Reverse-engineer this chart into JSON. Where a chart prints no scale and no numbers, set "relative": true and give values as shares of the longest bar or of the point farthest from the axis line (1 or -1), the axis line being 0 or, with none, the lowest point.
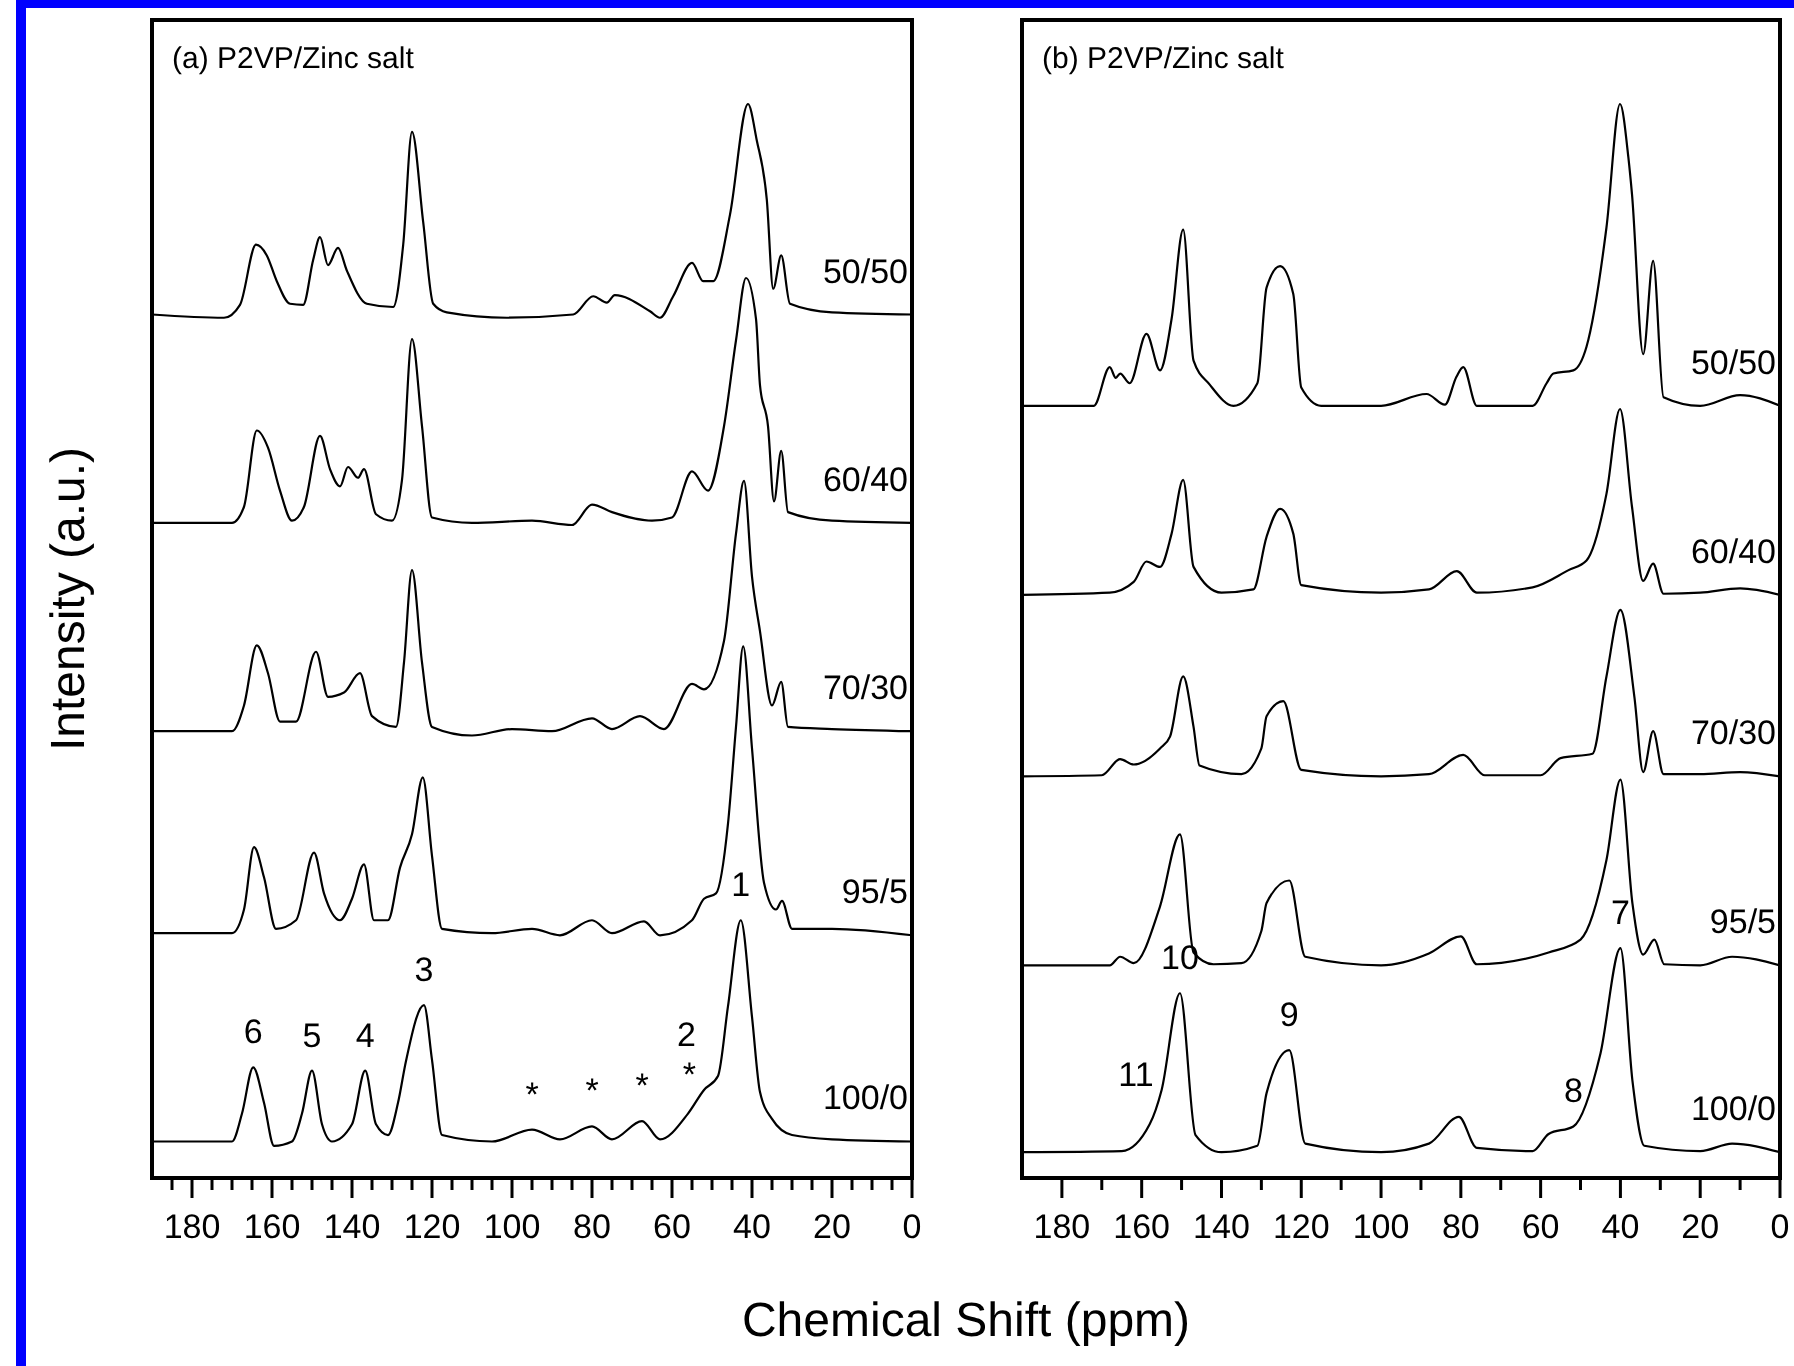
{
  "chart_data": [
    {
      "type": "line",
      "title": "(a) P2VP/Zinc salt",
      "xlabel": "Chemical Shift (ppm)",
      "ylabel": "Intensity (a.u.)",
      "relative": true,
      "xlim": [
        190,
        0
      ],
      "xticks": [
        {
          "value": 185,
          "label": null
        },
        180,
        {
          "value": 175,
          "label": null
        },
        {
          "value": 170,
          "label": null
        },
        {
          "value": 165,
          "label": null
        },
        160,
        {
          "value": 155,
          "label": null
        },
        {
          "value": 150,
          "label": null
        },
        {
          "value": 145,
          "label": null
        },
        140,
        {
          "value": 135,
          "label": null
        },
        {
          "value": 130,
          "label": null
        },
        {
          "value": 125,
          "label": null
        },
        120,
        {
          "value": 115,
          "label": null
        },
        {
          "value": 110,
          "label": null
        },
        {
          "value": 105,
          "label": null
        },
        100,
        {
          "value": 95,
          "label": null
        },
        {
          "value": 90,
          "label": null
        },
        {
          "value": 85,
          "label": null
        },
        80,
        {
          "value": 75,
          "label": null
        },
        {
          "value": 70,
          "label": null
        },
        {
          "value": 65,
          "label": null
        },
        60,
        {
          "value": 55,
          "label": null
        },
        {
          "value": 50,
          "label": null
        },
        {
          "value": 45,
          "label": null
        },
        40,
        {
          "value": 35,
          "label": null
        },
        {
          "value": 30,
          "label": null
        },
        {
          "value": 25,
          "label": null
        },
        20,
        {
          "value": 15,
          "label": null
        },
        {
          "value": 10,
          "label": null
        },
        {
          "value": 5,
          "label": null
        },
        0
      ],
      "series": [
        {
          "name": "50/50",
          "color": "#000000",
          "x": [
            190,
            172,
            168,
            164,
            161.3,
            158.8,
            155.5,
            152.2,
            149.7,
            148,
            146,
            143.5,
            141.3,
            136.3,
            129.7,
            127.2,
            125,
            122.2,
            119.7,
            116.3,
            101.3,
            84.7,
            79.7,
            76.3,
            74.3,
            65.5,
            63,
            59.7,
            55,
            52.2,
            49.7,
            45.5,
            41,
            38.8,
            36.3,
            34.7,
            32.7,
            30.5,
            20,
            0
          ],
          "values": [
            0.804,
            0.801,
            0.813,
            0.869,
            0.859,
            0.835,
            0.814,
            0.813,
            0.855,
            0.876,
            0.85,
            0.866,
            0.845,
            0.814,
            0.811,
            0.869,
            0.974,
            0.89,
            0.814,
            0.806,
            0.801,
            0.804,
            0.821,
            0.815,
            0.822,
            0.807,
            0.801,
            0.821,
            0.852,
            0.835,
            0.835,
            0.897,
            1.0,
            0.966,
            0.911,
            0.828,
            0.859,
            0.814,
            0.806,
            0.804
          ]
        },
        {
          "name": "60/40",
          "color": "#000000",
          "x": [
            190,
            170,
            167,
            163.8,
            161,
            158,
            155,
            152,
            148,
            145.5,
            143,
            141,
            138.5,
            137,
            134,
            130,
            127.5,
            125,
            122.5,
            120,
            110,
            95,
            85,
            80,
            75,
            65,
            60,
            55,
            51,
            47,
            44,
            41.5,
            39,
            38,
            36,
            34.5,
            32.7,
            31,
            20,
            0
          ],
          "values": [
            0.61,
            0.61,
            0.625,
            0.696,
            0.68,
            0.64,
            0.612,
            0.625,
            0.691,
            0.66,
            0.644,
            0.662,
            0.652,
            0.66,
            0.618,
            0.612,
            0.65,
            0.781,
            0.7,
            0.615,
            0.61,
            0.612,
            0.608,
            0.627,
            0.62,
            0.612,
            0.615,
            0.658,
            0.64,
            0.7,
            0.78,
            0.838,
            0.8,
            0.738,
            0.7,
            0.63,
            0.677,
            0.62,
            0.612,
            0.61
          ]
        },
        {
          "name": "70/30",
          "color": "#000000",
          "x": [
            190,
            170,
            167,
            163.8,
            161,
            158,
            154,
            149,
            146,
            142,
            138,
            135,
            129,
            127,
            125,
            122.5,
            120,
            110,
            100,
            90,
            80,
            75,
            68,
            62,
            55,
            52,
            47,
            44,
            42,
            40,
            38,
            35,
            32.7,
            31,
            20,
            0
          ],
          "values": [
            0.416,
            0.416,
            0.44,
            0.496,
            0.47,
            0.425,
            0.425,
            0.49,
            0.448,
            0.452,
            0.47,
            0.43,
            0.42,
            0.48,
            0.566,
            0.48,
            0.42,
            0.412,
            0.418,
            0.416,
            0.428,
            0.418,
            0.43,
            0.418,
            0.46,
            0.455,
            0.5,
            0.6,
            0.649,
            0.56,
            0.509,
            0.44,
            0.462,
            0.42,
            0.418,
            0.416
          ]
        },
        {
          "name": "95/5",
          "color": "#000000",
          "x": [
            190,
            170,
            167,
            164.5,
            162,
            159,
            154,
            149.5,
            147,
            143,
            140,
            137,
            134.5,
            131,
            128,
            125,
            122.3,
            120,
            117.5,
            105,
            95,
            88,
            80,
            75,
            67,
            63,
            55,
            52,
            49,
            46,
            44,
            42.2,
            40,
            37,
            34,
            32.5,
            30,
            20,
            0
          ],
          "values": [
            0.228,
            0.228,
            0.25,
            0.308,
            0.28,
            0.232,
            0.24,
            0.303,
            0.265,
            0.24,
            0.26,
            0.292,
            0.24,
            0.24,
            0.289,
            0.32,
            0.373,
            0.3,
            0.232,
            0.228,
            0.232,
            0.226,
            0.24,
            0.228,
            0.239,
            0.226,
            0.24,
            0.26,
            0.265,
            0.33,
            0.42,
            0.495,
            0.4,
            0.275,
            0.25,
            0.258,
            0.232,
            0.232,
            0.226
          ]
        },
        {
          "name": "100/0",
          "color": "#000000",
          "x": [
            190,
            170,
            167.5,
            164.7,
            162,
            159.5,
            155,
            152.5,
            150,
            147.5,
            145,
            140,
            136.7,
            134,
            131,
            128.5,
            126.5,
            122,
            120,
            117.5,
            105,
            95,
            88,
            80,
            75,
            67.5,
            63,
            56,
            52,
            48.5,
            46,
            42.8,
            40,
            38,
            35,
            30,
            20,
            0
          ],
          "values": [
            0.034,
            0.034,
            0.06,
            0.103,
            0.07,
            0.03,
            0.034,
            0.06,
            0.1,
            0.05,
            0.034,
            0.05,
            0.1,
            0.05,
            0.04,
            0.07,
            0.109,
            0.161,
            0.11,
            0.04,
            0.034,
            0.045,
            0.036,
            0.048,
            0.036,
            0.053,
            0.036,
            0.06,
            0.082,
            0.095,
            0.16,
            0.24,
            0.15,
            0.08,
            0.055,
            0.04,
            0.036,
            0.034
          ]
        }
      ],
      "annotations": [
        {
          "text": "6",
          "x": 164.7,
          "y": 0.103
        },
        {
          "text": "5",
          "x": 150,
          "y": 0.1
        },
        {
          "text": "4",
          "x": 136.7,
          "y": 0.1
        },
        {
          "text": "3",
          "x": 122,
          "y": 0.161
        },
        {
          "text": "*",
          "x": 52,
          "y": 0.082
        },
        {
          "text": "2",
          "x": 52,
          "y": 0.082
        },
        {
          "text": "1",
          "x": 42.8,
          "y": 0.24
        },
        {
          "text": "*",
          "x": 95,
          "y": 0.045
        },
        {
          "text": "*",
          "x": 80,
          "y": 0.048
        },
        {
          "text": "*",
          "x": 67.5,
          "y": 0.053
        }
      ]
    },
    {
      "type": "line",
      "title": "(b) P2VP/Zinc salt",
      "relative": true,
      "xlim": [
        190,
        0
      ],
      "xticks": [
        180,
        {
          "value": 170,
          "label": null
        },
        160,
        {
          "value": 150,
          "label": null
        },
        140,
        {
          "value": 130,
          "label": null
        },
        120,
        {
          "value": 110,
          "label": null
        },
        100,
        {
          "value": 90,
          "label": null
        },
        80,
        {
          "value": 70,
          "label": null
        },
        60,
        {
          "value": 50,
          "label": null
        },
        40,
        {
          "value": 30,
          "label": null
        },
        20,
        {
          "value": 10,
          "label": null
        },
        0
      ],
      "series": [
        {
          "name": "50/50",
          "color": "#000000",
          "x": [
            190,
            172,
            168,
            166.5,
            165.4,
            163,
            158.8,
            155.4,
            152.5,
            149.6,
            147,
            143,
            137,
            131,
            128.7,
            125.3,
            122,
            120,
            115,
            100,
            88.6,
            84,
            81.1,
            79.4,
            76,
            62,
            58.5,
            56.8,
            51.8,
            48.5,
            43.5,
            40.1,
            38,
            37.1,
            34.3,
            31.8,
            29.2,
            20,
            10,
            0
          ],
          "values": [
            0.719,
            0.719,
            0.755,
            0.745,
            0.749,
            0.74,
            0.786,
            0.752,
            0.8,
            0.883,
            0.761,
            0.739,
            0.719,
            0.74,
            0.829,
            0.849,
            0.823,
            0.736,
            0.719,
            0.719,
            0.73,
            0.72,
            0.746,
            0.755,
            0.719,
            0.719,
            0.74,
            0.749,
            0.752,
            0.774,
            0.885,
            1.0,
            0.95,
            0.916,
            0.767,
            0.854,
            0.727,
            0.719,
            0.729,
            0.719
          ]
        },
        {
          "name": "60/40",
          "color": "#000000",
          "x": [
            190,
            168,
            162,
            158.8,
            155.4,
            152.5,
            149.6,
            147,
            140,
            132,
            128.7,
            125.3,
            122,
            120,
            100,
            88,
            81,
            76,
            62,
            53,
            48.5,
            43.5,
            40.1,
            37.1,
            34.3,
            31.8,
            29.2,
            20,
            10,
            0
          ],
          "values": [
            0.543,
            0.545,
            0.555,
            0.574,
            0.569,
            0.6,
            0.65,
            0.569,
            0.545,
            0.548,
            0.597,
            0.623,
            0.6,
            0.552,
            0.545,
            0.548,
            0.565,
            0.545,
            0.55,
            0.566,
            0.575,
            0.637,
            0.716,
            0.625,
            0.556,
            0.572,
            0.544,
            0.545,
            0.549,
            0.543
          ]
        },
        {
          "name": "70/30",
          "color": "#000000",
          "x": [
            190,
            170,
            165.4,
            162,
            155.4,
            152.9,
            149.6,
            147,
            145.5,
            135,
            130,
            128.7,
            124.5,
            120,
            100,
            88,
            79.4,
            74,
            60,
            55,
            47,
            43.5,
            40,
            36.5,
            34.3,
            31.8,
            29.2,
            20,
            10,
            0
          ],
          "values": [
            0.374,
            0.375,
            0.39,
            0.385,
            0.4,
            0.411,
            0.467,
            0.42,
            0.384,
            0.376,
            0.4,
            0.43,
            0.444,
            0.38,
            0.374,
            0.376,
            0.394,
            0.375,
            0.375,
            0.391,
            0.395,
            0.467,
            0.529,
            0.448,
            0.378,
            0.416,
            0.376,
            0.376,
            0.378,
            0.374
          ]
        },
        {
          "name": "95/5",
          "color": "#000000",
          "x": [
            190,
            168,
            165.4,
            162,
            155.4,
            150.4,
            147,
            142,
            135,
            130,
            128.7,
            123,
            119,
            100,
            88,
            80,
            76,
            58,
            50,
            43.5,
            40,
            37,
            34.3,
            31.5,
            29,
            20,
            12,
            0
          ],
          "values": [
            0.198,
            0.198,
            0.206,
            0.2,
            0.253,
            0.32,
            0.21,
            0.199,
            0.2,
            0.23,
            0.256,
            0.277,
            0.206,
            0.198,
            0.209,
            0.225,
            0.199,
            0.21,
            0.222,
            0.296,
            0.371,
            0.256,
            0.208,
            0.222,
            0.199,
            0.198,
            0.206,
            0.198
          ]
        },
        {
          "name": "100/0",
          "color": "#000000",
          "x": [
            190,
            165,
            158,
            155,
            150.4,
            146.5,
            140,
            131,
            128.7,
            123,
            119,
            100,
            88,
            80.5,
            76,
            62,
            58,
            51.8,
            45,
            40,
            37,
            34,
            20,
            12,
            0
          ],
          "values": [
            0.024,
            0.025,
            0.05,
            0.082,
            0.172,
            0.04,
            0.024,
            0.03,
            0.079,
            0.119,
            0.032,
            0.024,
            0.032,
            0.057,
            0.028,
            0.025,
            0.041,
            0.048,
            0.116,
            0.214,
            0.091,
            0.03,
            0.025,
            0.032,
            0.024
          ]
        }
      ],
      "annotations": [
        {
          "text": "10",
          "x": 150.4,
          "y": 0.172
        },
        {
          "text": "11",
          "x": 155,
          "y": 0.082
        },
        {
          "text": "9",
          "x": 123,
          "y": 0.119
        },
        {
          "text": "8",
          "x": 51.8,
          "y": 0.048
        },
        {
          "text": "7",
          "x": 40,
          "y": 0.214
        }
      ]
    }
  ]
}
